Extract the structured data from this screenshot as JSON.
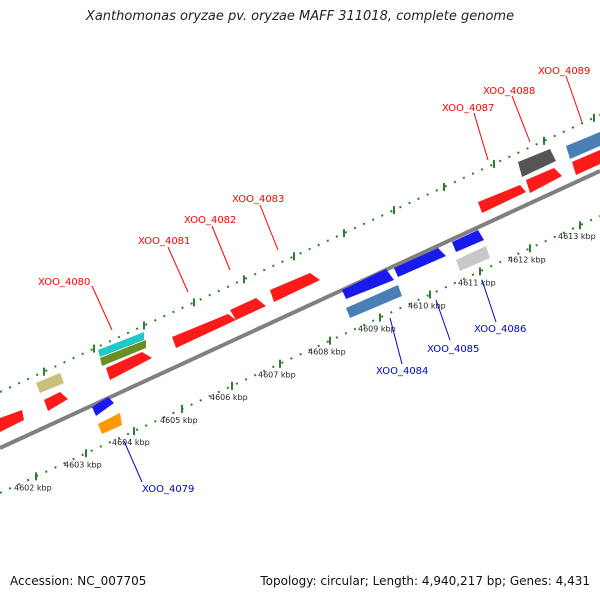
{
  "title": "Xanthomonas oryzae pv. oryzae MAFF 311018, complete genome",
  "footer": {
    "accession": "Accession: NC_007705",
    "topology": "Topology: circular; Length: 4,940,217 bp; Genes: 4,431"
  },
  "kbp_labels": [
    "4602 kbp",
    "4603 kbp",
    "4604 kbp",
    "4605 kbp",
    "4606 kbp",
    "4607 kbp",
    "4608 kbp",
    "4609 kbp",
    "4610 kbp",
    "4611 kbp",
    "4612 kbp",
    "4613 kbp"
  ],
  "gene_labels_top": [
    "XOO_4080",
    "XOO_4081",
    "XOO_4082",
    "XOO_4083",
    "XOO_4087",
    "XOO_4088",
    "XOO_4089"
  ],
  "gene_labels_bottom": [
    "XOO_4079",
    "XOO_4084",
    "XOO_4085",
    "XOO_4086"
  ],
  "colors": {
    "forward_label": "#ff0000",
    "reverse_label": "#0000cc",
    "gene_red": "#ff1a1a",
    "gene_blue": "#1a1aee",
    "gene_steelblue": "#4a7fb5",
    "gene_dark": "#555555",
    "gene_gray": "#c8c8c8",
    "gene_khaki": "#c9bf7a",
    "gene_cyan": "#20c8c8",
    "gene_olive": "#6b8e23",
    "gene_orange": "#ff9900",
    "tick_green": "#2e7d32",
    "backbone": "#777777"
  }
}
